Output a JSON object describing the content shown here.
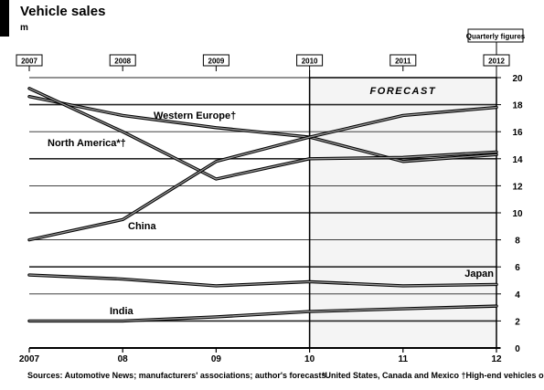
{
  "title": "Vehicle sales",
  "subtitle": "m",
  "footer_left": "Sources: Automotive News; manufacturers' associations; author's forecasts",
  "footer_right": "*United States, Canada and Mexico   †High-end vehicles only",
  "chart_data": {
    "type": "line",
    "title": "Vehicle sales",
    "ylabel": "m",
    "x": [
      2007,
      2008,
      2009,
      2010,
      2011,
      2012
    ],
    "x_tick_labels": [
      "2007",
      "08",
      "09",
      "10",
      "11",
      "12"
    ],
    "ylim": [
      0,
      20
    ],
    "y_ticks": [
      0,
      2,
      4,
      6,
      8,
      10,
      12,
      14,
      16,
      18,
      20
    ],
    "grid": true,
    "forecast_label": "FORECAST",
    "forecast_from_x": 2010,
    "series": [
      {
        "name": "Western Europe†",
        "color": "#4a4a4a",
        "values": [
          18.6,
          17.2,
          16.3,
          15.6,
          13.8,
          14.3
        ]
      },
      {
        "name": "North America*†",
        "color": "#3a3a3a",
        "values": [
          19.2,
          16.0,
          12.5,
          14.0,
          14.1,
          14.5
        ]
      },
      {
        "name": "China",
        "color": "#2d2d2d",
        "values": [
          8.0,
          9.5,
          13.8,
          15.6,
          17.2,
          17.8
        ]
      },
      {
        "name": "Japan",
        "color": "#555555",
        "values": [
          5.4,
          5.1,
          4.6,
          4.9,
          4.6,
          4.7
        ]
      },
      {
        "name": "India",
        "color": "#333333",
        "values": [
          2.0,
          2.0,
          2.3,
          2.7,
          2.9,
          3.1
        ]
      }
    ],
    "top_markers": [
      {
        "x": 2007,
        "label": "2007"
      },
      {
        "x": 2008,
        "label": "2008"
      },
      {
        "x": 2009,
        "label": "2009"
      },
      {
        "x": 2010,
        "label": "2010"
      },
      {
        "x": 2011,
        "label": "2011"
      },
      {
        "x": 2012,
        "label": "2012"
      }
    ],
    "top_right_label": "Quarterly figures"
  }
}
